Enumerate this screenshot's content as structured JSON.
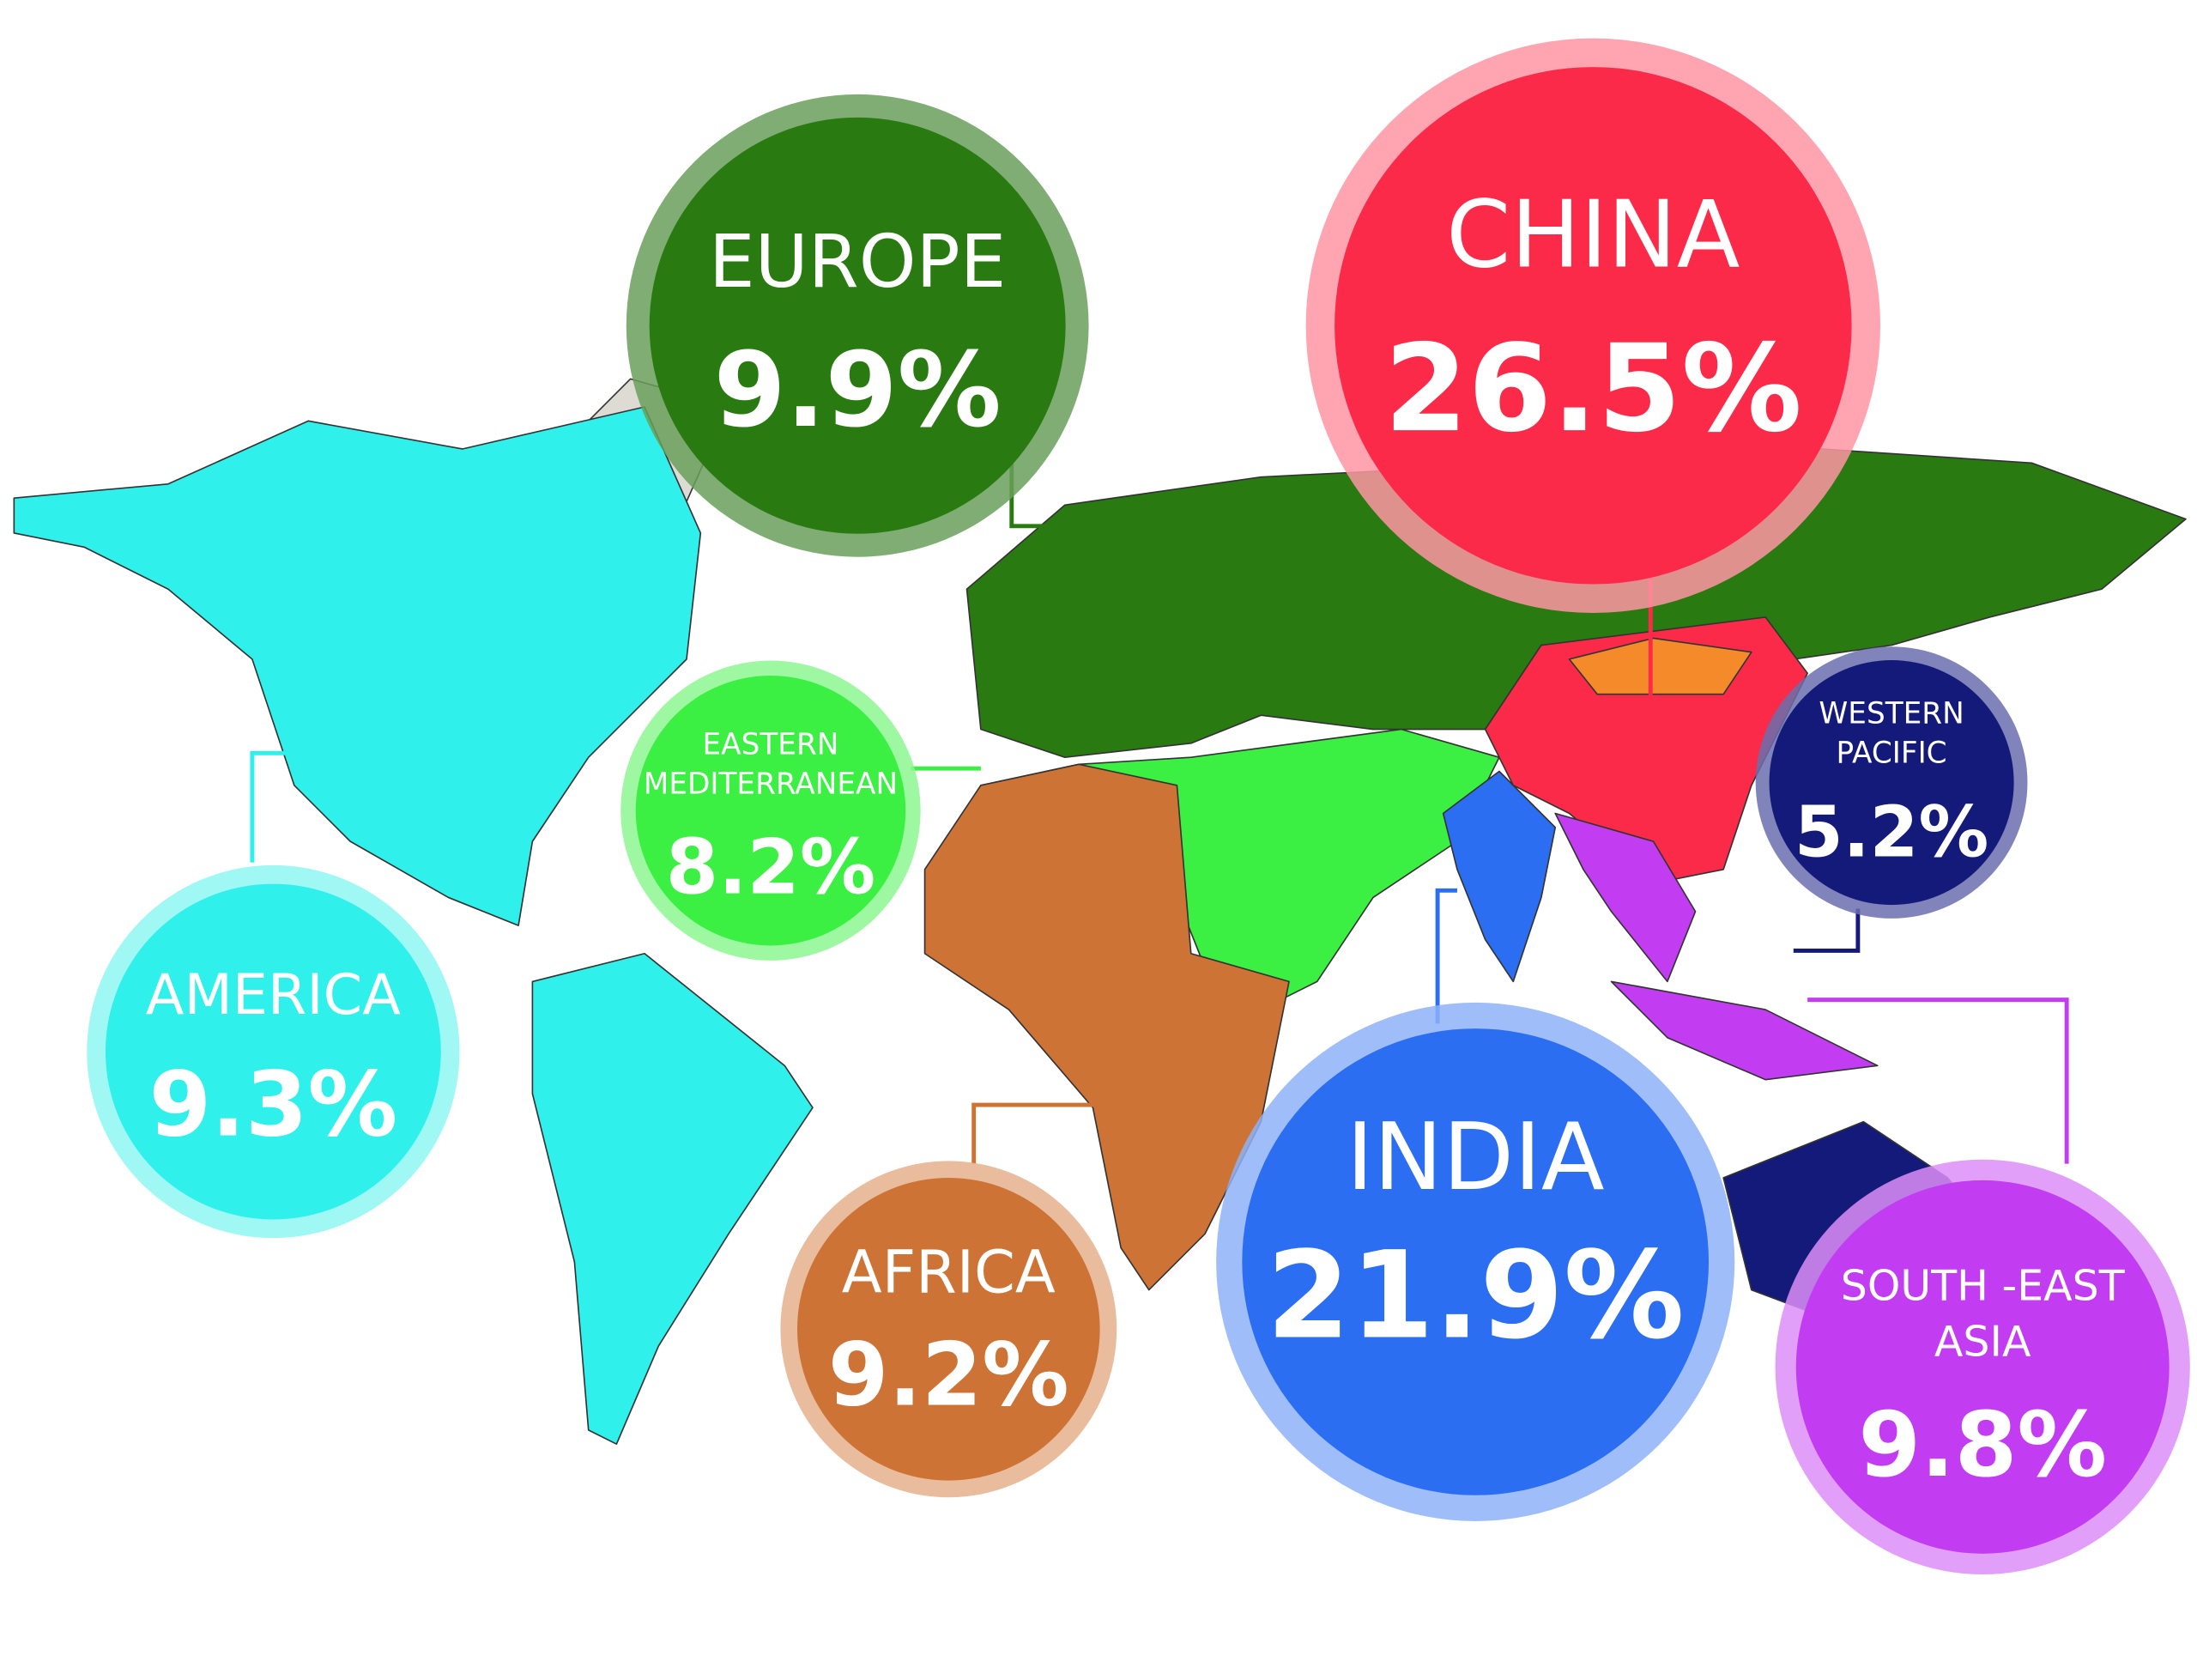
{
  "regions": [
    {
      "name_lines": [
        "EUROPE"
      ],
      "value": "9.9%"
    },
    {
      "name_lines": [
        "CHINA"
      ],
      "value": "26.5%"
    },
    {
      "name_lines": [
        "EASTERN",
        "MEDITERRANEAN"
      ],
      "value": "8.2%"
    },
    {
      "name_lines": [
        "AMERICA"
      ],
      "value": "9.3%"
    },
    {
      "name_lines": [
        "WESTERN",
        "PACIFIC"
      ],
      "value": "5.2%"
    },
    {
      "name_lines": [
        "INDIA"
      ],
      "value": "21.9%"
    },
    {
      "name_lines": [
        "AFRICA"
      ],
      "value": "9.2%"
    },
    {
      "name_lines": [
        "SOUTH -EAST",
        "ASIA"
      ],
      "value": "9.8%"
    }
  ]
}
